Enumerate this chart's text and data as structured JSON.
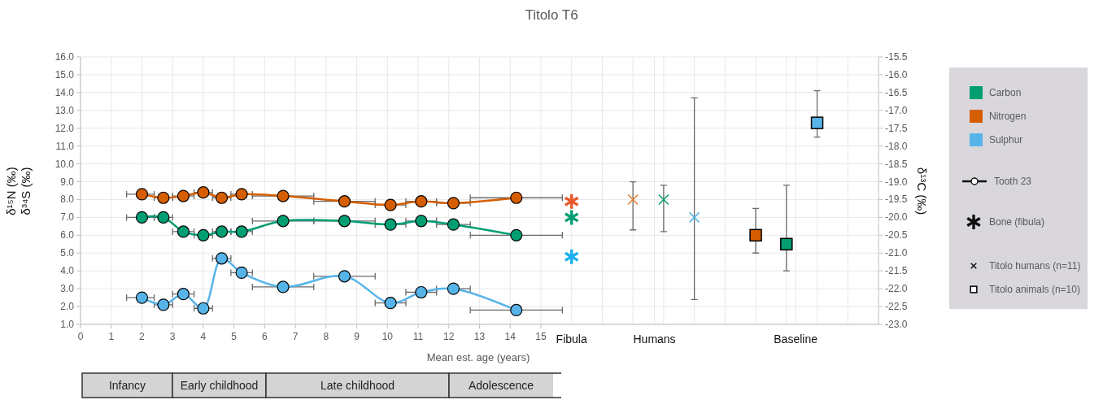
{
  "chart_data": {
    "type": "line",
    "title": "Titolo T6",
    "xlabel": "Mean est. age (years)",
    "ylabel": "δ¹⁵N (‰)\nδ³⁴S (‰)",
    "y2label": "δ¹³C (‰)",
    "xlim": [
      0,
      26
    ],
    "xticks": [
      0,
      1,
      2,
      3,
      4,
      5,
      6,
      7,
      8,
      9,
      10,
      11,
      12,
      13,
      14,
      15,
      {
        "value": 16,
        "label": "Fibula"
      },
      {
        "value": 17,
        "label": null
      },
      {
        "value": 18,
        "label": null
      },
      {
        "value": 18.7,
        "label": "Humans"
      },
      {
        "value": 19,
        "label": null
      },
      {
        "value": 20,
        "label": null
      },
      {
        "value": 21,
        "label": null
      },
      {
        "value": 22,
        "label": null
      },
      {
        "value": 23,
        "label": null
      },
      {
        "value": 23.3,
        "label": "Baseline"
      },
      {
        "value": 24,
        "label": null
      },
      {
        "value": 25,
        "label": null
      }
    ],
    "ylim": [
      1,
      16
    ],
    "yticks": [
      {
        "value": 1,
        "label": "1.0"
      },
      {
        "value": 2,
        "label": "2.0"
      },
      {
        "value": 3,
        "label": "3.0"
      },
      {
        "value": 4,
        "label": "4.0"
      },
      {
        "value": 5,
        "label": "5.0"
      },
      {
        "value": 6,
        "label": "6.0"
      },
      {
        "value": 7,
        "label": "7.0"
      },
      {
        "value": 8,
        "label": "8.0"
      },
      {
        "value": 9,
        "label": "9.0"
      },
      {
        "value": 10,
        "label": "10.0"
      },
      {
        "value": 11,
        "label": "11.0"
      },
      {
        "value": 12,
        "label": "12.0"
      },
      {
        "value": 13,
        "label": "13.0"
      },
      {
        "value": 14,
        "label": "14.0"
      },
      {
        "value": 15,
        "label": "15.0"
      },
      {
        "value": 16,
        "label": "16.0"
      }
    ],
    "y2lim": [
      -23,
      -15.5
    ],
    "y2ticks": [
      {
        "value": -23,
        "label": "-23.0"
      },
      -22.5,
      {
        "value": -22,
        "label": "-22.0"
      },
      -21.5,
      {
        "value": -21,
        "label": "-21.0"
      },
      -20.5,
      {
        "value": -20,
        "label": "-20.0"
      },
      -19.5,
      {
        "value": -19,
        "label": "-19.0"
      },
      -18.5,
      {
        "value": -18,
        "label": "-18.0"
      },
      -17.5,
      {
        "value": -17,
        "label": "-17.0"
      },
      -16.5,
      {
        "value": -16,
        "label": "-16.0"
      },
      -15.5
    ],
    "grid": true,
    "legend": "right",
    "line_style": "solid",
    "annotations": [
      "Tooth 23",
      "Bone (fibula)",
      "Titolo humans (n=11)",
      "Titolo animals (n=10)",
      "Infancy",
      "Early childhood",
      "Late childhood",
      "Adolescence"
    ],
    "series": [
      {
        "name": "Carbon",
        "axis": "y2",
        "marker": "circle",
        "color": "#009e73",
        "x": [
          2.0,
          2.7,
          3.35,
          4.0,
          4.6,
          5.25,
          6.6,
          8.6,
          10.1,
          11.1,
          12.15,
          14.2
        ],
        "values": [
          -20.0,
          -20.0,
          -20.4,
          -20.5,
          -20.4,
          -20.4,
          -20.1,
          -20.1,
          -20.2,
          -20.1,
          -20.2,
          -20.5
        ],
        "xerrors": [
          [
            1.5,
            2.4
          ],
          [
            2.4,
            3.0
          ],
          [
            3.0,
            3.7
          ],
          [
            3.7,
            4.3
          ],
          [
            4.3,
            4.9
          ],
          [
            4.9,
            5.6
          ],
          [
            5.6,
            7.6
          ],
          [
            7.6,
            9.6
          ],
          [
            9.6,
            10.6
          ],
          [
            10.6,
            11.6
          ],
          [
            11.6,
            12.7
          ],
          [
            12.7,
            15.7
          ]
        ]
      },
      {
        "name": "Nitrogen",
        "marker": "circle",
        "color": "#d55e00",
        "x": [
          2.0,
          2.7,
          3.35,
          4.0,
          4.6,
          5.25,
          6.6,
          8.6,
          10.1,
          11.1,
          12.15,
          14.2
        ],
        "values": [
          8.3,
          8.1,
          8.2,
          8.4,
          8.1,
          8.3,
          8.2,
          7.9,
          7.7,
          7.9,
          7.8,
          8.1
        ],
        "xerrors": [
          [
            1.5,
            2.4
          ],
          [
            2.4,
            3.0
          ],
          [
            3.0,
            3.7
          ],
          [
            3.7,
            4.3
          ],
          [
            4.3,
            4.9
          ],
          [
            4.9,
            5.6
          ],
          [
            5.6,
            7.6
          ],
          [
            7.6,
            9.6
          ],
          [
            9.6,
            10.6
          ],
          [
            10.6,
            11.6
          ],
          [
            11.6,
            12.7
          ],
          [
            12.7,
            15.7
          ]
        ]
      },
      {
        "name": "Sulphur",
        "marker": "circle",
        "color": "#56b4e9",
        "x": [
          2.0,
          2.7,
          3.35,
          4.0,
          4.6,
          5.25,
          6.6,
          8.6,
          10.1,
          11.1,
          12.15,
          14.2
        ],
        "values": [
          2.5,
          2.1,
          2.7,
          1.9,
          4.7,
          3.9,
          3.1,
          3.7,
          2.2,
          2.8,
          3.0,
          1.8
        ],
        "xerrors": [
          [
            1.5,
            2.4
          ],
          [
            2.4,
            3.0
          ],
          [
            3.0,
            3.7
          ],
          [
            3.7,
            4.3
          ],
          [
            4.3,
            4.9
          ],
          [
            4.9,
            5.6
          ],
          [
            5.6,
            7.6
          ],
          [
            7.6,
            9.6
          ],
          [
            9.6,
            10.6
          ],
          [
            10.6,
            11.6
          ],
          [
            11.6,
            12.7
          ],
          [
            12.7,
            15.7
          ]
        ]
      },
      {
        "type": "scatter",
        "marker": "star",
        "x": [
          16,
          16
        ],
        "values": [
          7.9,
          4.8
        ],
        "colors": [
          "#e8582a",
          "#1ab0f0"
        ]
      },
      {
        "type": "scatter",
        "axis": "y2",
        "marker": "star",
        "color": "#009e73",
        "x": [
          16
        ],
        "values": [
          -20.0
        ]
      },
      {
        "type": "scatter",
        "marker": "cross",
        "x": [
          18,
          20
        ],
        "values": [
          8.0,
          7.0
        ],
        "colors": [
          "#e8772a",
          "#56b4e9"
        ],
        "errors": [
          [
            6.3,
            9.0
          ],
          [
            2.4,
            13.7
          ]
        ]
      },
      {
        "type": "scatter",
        "axis": "y2",
        "marker": "cross",
        "color": "#009e73",
        "x": [
          19
        ],
        "values": [
          -19.5
        ],
        "errors": [
          [
            -20.4,
            -19.1
          ]
        ]
      },
      {
        "type": "scatter",
        "marker": "square",
        "x": [
          22,
          24
        ],
        "values": [
          6.0,
          12.3
        ],
        "colors": [
          "#d55e00",
          "#56b4e9"
        ],
        "errors": [
          [
            5.0,
            7.5
          ],
          [
            11.5,
            14.1
          ]
        ]
      },
      {
        "type": "scatter",
        "axis": "y2",
        "marker": "square",
        "color": "#009e73",
        "x": [
          23
        ],
        "values": [
          -20.75
        ],
        "errors": [
          [
            -21.5,
            -19.1
          ]
        ]
      }
    ]
  }
}
